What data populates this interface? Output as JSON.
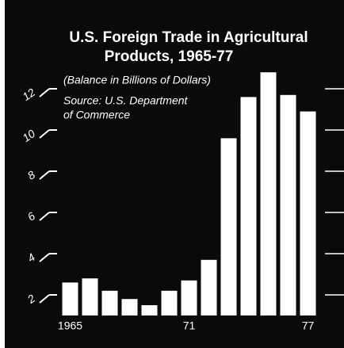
{
  "chart_data": {
    "type": "bar",
    "title": [
      "U.S. Foreign Trade in Agricultural",
      "Products, 1965-77"
    ],
    "subtitle": "(Balance in Billions of Dollars)",
    "source": [
      "Source: U.S. Department",
      "of Commerce"
    ],
    "categories": [
      "1965",
      null,
      null,
      null,
      null,
      null,
      "71",
      null,
      null,
      null,
      null,
      null,
      "77"
    ],
    "values": [
      2.6,
      2.8,
      2.2,
      1.8,
      1.5,
      2.2,
      2.7,
      3.7,
      9.6,
      11.6,
      12.8,
      11.7,
      10.9
    ],
    "color": "#ffffff",
    "ylim": [
      1,
      14
    ],
    "yticks": [
      2,
      4,
      6,
      8,
      10,
      12
    ],
    "grid": false
  }
}
